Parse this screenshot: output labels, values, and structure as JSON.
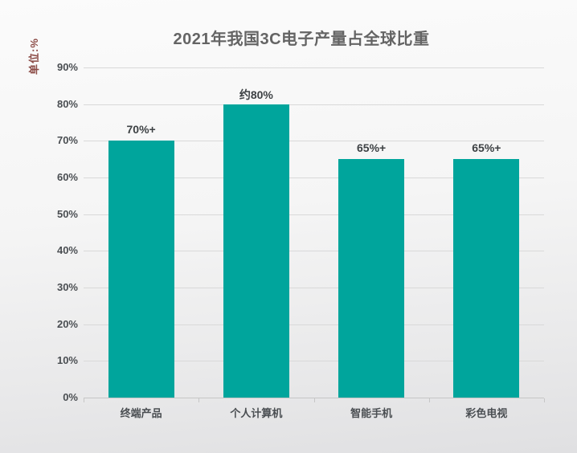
{
  "title": "2021年我国3C电子产量占全球比重",
  "unit_label": "单位:%",
  "colors": {
    "bar": "#00a59c",
    "title_text": "#646464",
    "unit_text": "#8b4a45",
    "axis_text": "#4a4e52",
    "bar_label_text": "#3d4144",
    "gridline": "#d9d9d9",
    "baseline": "#c6c6c6"
  },
  "chart_data": {
    "type": "bar",
    "title": "2021年我国3C电子产量占全球比重",
    "ylabel": "单位:%",
    "categories": [
      "终端产品",
      "个人计算机",
      "智能手机",
      "彩色电视"
    ],
    "values": [
      70,
      80,
      65,
      65
    ],
    "bar_labels": [
      "70%+",
      "约80%",
      "65%+",
      "65%+"
    ],
    "y_ticks": [
      "0%",
      "10%",
      "20%",
      "30%",
      "40%",
      "50%",
      "60%",
      "70%",
      "80%",
      "90%"
    ],
    "y_tick_values": [
      0,
      10,
      20,
      30,
      40,
      50,
      60,
      70,
      80,
      90
    ],
    "ylim": [
      0,
      90
    ],
    "grid": true,
    "legend": false,
    "bar_color": "#00a59c"
  }
}
